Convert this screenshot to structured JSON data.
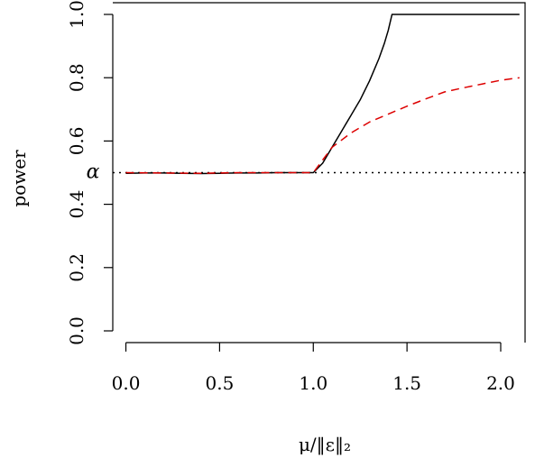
{
  "chart_data": {
    "type": "line",
    "title": "",
    "xlabel": "μ/‖ε‖₂",
    "ylabel": "power",
    "xlim": [
      -0.07,
      2.13
    ],
    "ylim": [
      0.0,
      1.0
    ],
    "xticks": [
      "0.0",
      "0.5",
      "1.0",
      "1.5",
      "2.0"
    ],
    "yticks": [
      "0.0",
      "0.2",
      "0.4",
      "0.6",
      "0.8",
      "1.0"
    ],
    "reference_line": {
      "label": "α",
      "y": 0.5,
      "style": "dotted",
      "color": "#000000"
    },
    "series": [
      {
        "style": "solid",
        "color": "#000000",
        "x": [
          0.0,
          0.1,
          0.2,
          0.3,
          0.4,
          0.5,
          0.6,
          0.7,
          0.8,
          0.9,
          1.0,
          1.05,
          1.1,
          1.15,
          1.2,
          1.25,
          1.3,
          1.35,
          1.38,
          1.4,
          1.42,
          1.5,
          1.6,
          1.8,
          2.0,
          2.1
        ],
        "y": [
          0.498,
          0.499,
          0.499,
          0.498,
          0.497,
          0.498,
          0.499,
          0.499,
          0.5,
          0.5,
          0.5,
          0.53,
          0.58,
          0.63,
          0.68,
          0.73,
          0.79,
          0.86,
          0.91,
          0.95,
          1.0,
          1.0,
          1.0,
          1.0,
          1.0,
          1.0
        ]
      },
      {
        "style": "dashed",
        "color": "#dd0000",
        "x": [
          0.0,
          0.2,
          0.4,
          0.6,
          0.8,
          0.9,
          1.0,
          1.05,
          1.1,
          1.2,
          1.3,
          1.4,
          1.5,
          1.6,
          1.7,
          1.8,
          1.9,
          2.0,
          2.1
        ],
        "y": [
          0.5,
          0.499,
          0.498,
          0.5,
          0.5,
          0.5,
          0.5,
          0.54,
          0.58,
          0.625,
          0.66,
          0.685,
          0.71,
          0.733,
          0.755,
          0.768,
          0.78,
          0.792,
          0.8
        ]
      }
    ]
  }
}
